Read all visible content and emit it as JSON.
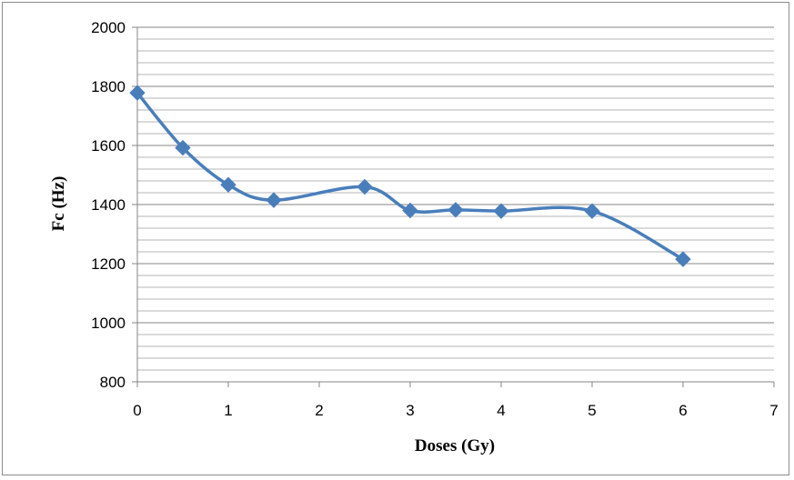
{
  "chart_data": {
    "type": "scatter",
    "title": "",
    "xlabel": "Doses (Gy)",
    "ylabel": "Fc (Hz)",
    "xlim": [
      0,
      7
    ],
    "ylim": [
      800,
      2000
    ],
    "x_ticks": [
      0,
      1,
      2,
      3,
      4,
      5,
      6,
      7
    ],
    "y_ticks": [
      800,
      1000,
      1200,
      1400,
      1600,
      1800,
      2000
    ],
    "y_minor_step": 40,
    "grid": true,
    "legend": "none",
    "line_style": "smoothed",
    "marker": "diamond",
    "series": [
      {
        "x": [
          0,
          0.5,
          1,
          1.5,
          2.5,
          3,
          3.5,
          4,
          5,
          6
        ],
        "y": [
          1778,
          1592,
          1467,
          1415,
          1460,
          1380,
          1382,
          1378,
          1378,
          1215
        ],
        "color": "#4a7ebb"
      }
    ]
  }
}
